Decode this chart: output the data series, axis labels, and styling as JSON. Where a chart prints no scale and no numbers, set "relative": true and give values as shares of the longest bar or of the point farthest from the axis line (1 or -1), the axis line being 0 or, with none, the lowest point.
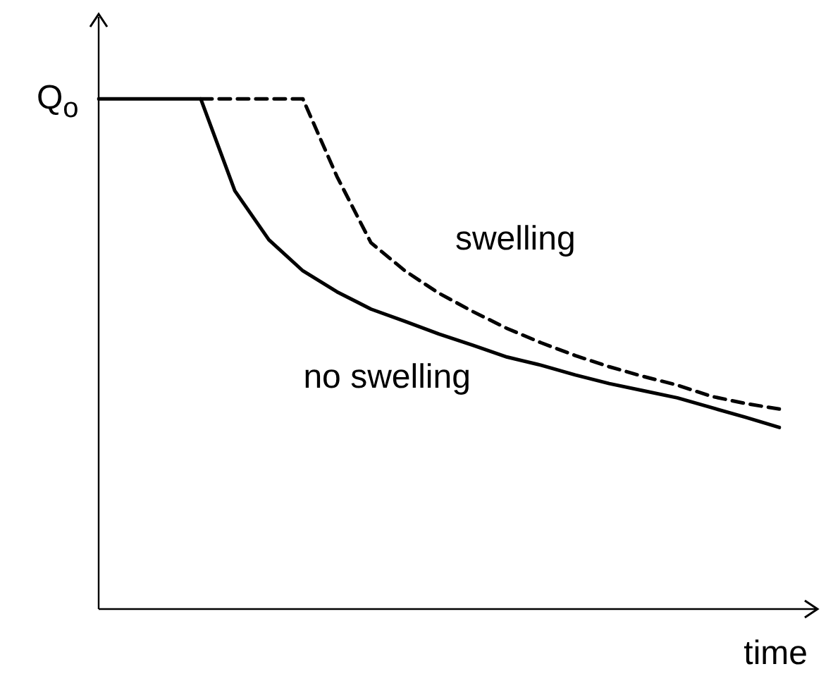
{
  "chart_data": {
    "type": "line",
    "relative": true,
    "xlabel": "time",
    "ylabel": "Q$_{o}$",
    "categories": [
      null,
      null,
      null,
      null,
      null,
      null,
      null,
      null,
      null,
      null,
      null,
      null,
      null,
      null,
      null,
      null,
      null,
      null,
      null,
      null,
      null
    ],
    "series": [
      {
        "name": "no swelling",
        "color": "#000000",
        "line_style": "solid",
        "values": [
          1,
          1,
          1,
          1,
          0.82,
          0.724,
          0.663,
          0.622,
          0.588,
          0.564,
          0.539,
          0.517,
          0.494,
          0.478,
          0.459,
          0.442,
          0.428,
          0.414,
          0.395,
          0.376,
          0.356
        ]
      },
      {
        "name": "swelling",
        "color": "#000000",
        "line_style": "dashed",
        "values": [
          null,
          null,
          null,
          1,
          1,
          1,
          1,
          0.848,
          0.718,
          0.663,
          0.619,
          0.583,
          0.55,
          0.522,
          0.497,
          0.475,
          0.456,
          0.439,
          0.417,
          0.403,
          0.392
        ]
      }
    ]
  }
}
